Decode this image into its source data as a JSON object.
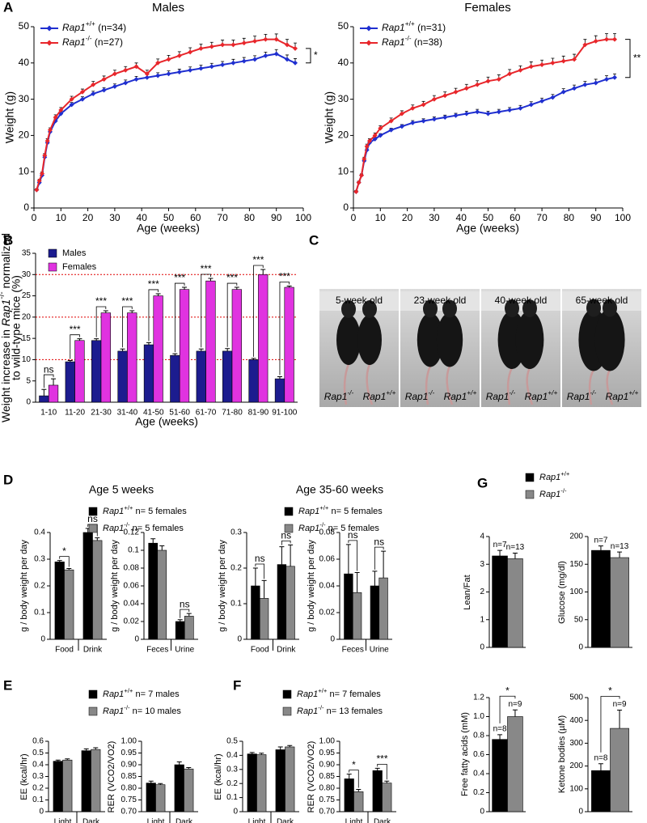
{
  "panel_labels": [
    "A",
    "B",
    "C",
    "D",
    "E",
    "F",
    "G"
  ],
  "photo_panel": {
    "photos": [
      {
        "caption": "5-week old",
        "left_label": "Rap1-/-",
        "right_label": "Rap1+/+"
      },
      {
        "caption": "23-week old",
        "left_label": "Rap1-/-",
        "right_label": "Rap1+/+"
      },
      {
        "caption": "40-week old",
        "left_label": "Rap1-/-",
        "right_label": "Rap1+/+"
      },
      {
        "caption": "65-week old",
        "left_label": "Rap1-/-",
        "right_label": "Rap1+/+"
      }
    ]
  },
  "chart_data": [
    {
      "type": "line",
      "title": "Males",
      "xlabel": "Age (weeks)",
      "ylabel": "Weight (g)",
      "x": [
        1,
        2,
        3,
        4,
        5,
        6,
        8,
        10,
        14,
        18,
        22,
        26,
        30,
        34,
        38,
        42,
        46,
        50,
        54,
        58,
        62,
        66,
        70,
        74,
        78,
        82,
        86,
        90,
        94,
        97
      ],
      "series": [
        {
          "name": "Rap1+/+ (n=34)",
          "color": "#1f2fd0",
          "values": [
            5,
            7,
            9,
            14,
            18,
            21,
            24,
            26,
            28.5,
            30,
            31.5,
            32.5,
            33.5,
            34.5,
            35.5,
            36,
            36.5,
            37,
            37.5,
            38,
            38.5,
            39,
            39.5,
            40,
            40.5,
            41,
            42,
            42.5,
            41,
            40
          ],
          "errors": [
            0.3,
            0.3,
            0.4,
            0.5,
            0.5,
            0.5,
            0.6,
            0.6,
            0.6,
            0.7,
            0.7,
            0.7,
            0.7,
            0.8,
            0.8,
            0.8,
            0.8,
            0.8,
            0.8,
            0.9,
            0.9,
            0.9,
            0.9,
            1,
            1,
            1,
            1,
            1.2,
            1.2,
            1.2
          ]
        },
        {
          "name": "Rap1-/- (n=27)",
          "color": "#e8262b",
          "values": [
            5,
            7.5,
            9.5,
            14.5,
            18.5,
            21.5,
            25,
            27,
            30,
            32,
            34,
            35.5,
            37,
            38,
            39,
            37,
            40,
            41,
            42,
            43,
            44,
            44.5,
            45,
            45,
            45.5,
            46,
            46.5,
            46.5,
            45,
            44
          ],
          "errors": [
            0.3,
            0.4,
            0.4,
            0.5,
            0.6,
            0.6,
            0.7,
            0.7,
            0.8,
            0.8,
            0.9,
            0.9,
            1,
            1,
            1,
            1,
            1.1,
            1.1,
            1.1,
            1.2,
            1.2,
            1.2,
            1.3,
            1.3,
            1.3,
            1.4,
            1.4,
            1.5,
            1.5,
            1.5
          ]
        }
      ],
      "annotation": "*",
      "xlim": [
        0,
        100
      ],
      "xticks": [
        0,
        10,
        20,
        30,
        40,
        50,
        60,
        70,
        80,
        90,
        100
      ],
      "ylim": [
        0,
        50
      ],
      "yticks": [
        0,
        10,
        20,
        30,
        40,
        50
      ]
    },
    {
      "type": "line",
      "title": "Females",
      "xlabel": "Age (weeks)",
      "ylabel": "Weight (g)",
      "x": [
        1,
        2,
        3,
        4,
        5,
        6,
        8,
        10,
        14,
        18,
        22,
        26,
        30,
        34,
        38,
        42,
        46,
        50,
        54,
        58,
        62,
        66,
        70,
        74,
        78,
        82,
        86,
        90,
        94,
        97
      ],
      "series": [
        {
          "name": "Rap1+/+ (n=31)",
          "color": "#1f2fd0",
          "values": [
            4.5,
            7,
            9,
            13,
            16,
            18,
            19,
            20,
            21.5,
            22.5,
            23.5,
            24,
            24.5,
            25,
            25.5,
            26,
            26.5,
            26,
            26.5,
            27,
            27.5,
            28.5,
            29.5,
            30.5,
            32,
            33,
            34,
            34.5,
            35.5,
            36
          ],
          "errors": [
            0.3,
            0.3,
            0.4,
            0.4,
            0.5,
            0.5,
            0.5,
            0.5,
            0.5,
            0.5,
            0.6,
            0.6,
            0.6,
            0.6,
            0.6,
            0.7,
            0.7,
            0.7,
            0.7,
            0.7,
            0.8,
            0.8,
            0.8,
            0.8,
            0.9,
            0.9,
            0.9,
            1,
            1,
            1
          ]
        },
        {
          "name": "Rap1-/- (n=38)",
          "color": "#e8262b",
          "values": [
            4.5,
            7,
            9,
            13.5,
            17,
            18.5,
            20,
            22,
            24,
            26,
            27.5,
            28.5,
            30,
            31,
            32,
            33,
            34,
            35,
            35.5,
            37,
            38,
            39,
            39.5,
            40,
            40.5,
            41,
            45,
            46,
            46.5,
            46.5
          ],
          "errors": [
            0.3,
            0.4,
            0.4,
            0.5,
            0.6,
            0.6,
            0.7,
            0.7,
            0.8,
            0.8,
            0.9,
            0.9,
            1,
            1,
            1,
            1.1,
            1.1,
            1.1,
            1.2,
            1.2,
            1.2,
            1.3,
            1.3,
            1.3,
            1.4,
            1.4,
            1.5,
            1.5,
            1.6,
            1.6
          ]
        }
      ],
      "annotation": "**",
      "xlim": [
        0,
        100
      ],
      "xticks": [
        0,
        10,
        20,
        30,
        40,
        50,
        60,
        70,
        80,
        90,
        100
      ],
      "ylim": [
        0,
        50
      ],
      "yticks": [
        0,
        10,
        20,
        30,
        40,
        50
      ]
    },
    {
      "type": "bar",
      "xlabel": "Age (weeks)",
      "ylabel": [
        "Weight increase in Rap1-/- normalized",
        "to wild-type mice (%)"
      ],
      "categories": [
        "1-10",
        "11-20",
        "21-30",
        "31-40",
        "41-50",
        "51-60",
        "61-70",
        "71-80",
        "81-90",
        "91-100"
      ],
      "series": [
        {
          "name": "Males",
          "color": "#1c1c8f",
          "values": [
            1.5,
            9.5,
            14.5,
            12,
            13.5,
            11,
            12,
            12,
            10,
            5.5
          ],
          "errors": [
            1.5,
            0.3,
            0.4,
            0.5,
            0.5,
            0.4,
            0.5,
            0.6,
            0.3,
            0.5
          ]
        },
        {
          "name": "Females",
          "color": "#e033e0",
          "values": [
            4,
            14.5,
            21,
            21,
            25,
            26.5,
            28.5,
            26.5,
            30,
            27
          ],
          "errors": [
            1.5,
            0.4,
            0.5,
            0.5,
            0.5,
            0.5,
            0.6,
            0.5,
            1.2,
            0.3
          ]
        }
      ],
      "significance": [
        "ns",
        "***",
        "***",
        "***",
        "***",
        "***",
        "***",
        "***",
        "***",
        "***"
      ],
      "reference_lines": [
        10,
        20,
        30
      ],
      "reference_color": "#e00000",
      "ylim": [
        0,
        35
      ],
      "yticks": [
        0,
        5,
        10,
        15,
        20,
        25,
        30,
        35
      ]
    },
    {
      "type": "bar",
      "title": "Age 5 weeks",
      "ylabel": "g / body weight per day",
      "categories": [
        "Food",
        "Drink"
      ],
      "series": [
        {
          "name": "Rap1+/+ n= 5 females",
          "color": "#000000",
          "values": [
            0.29,
            0.4
          ],
          "errors": [
            0.005,
            0.015
          ]
        },
        {
          "name": "Rap1-/- n= 5 females",
          "color": "#888888",
          "values": [
            0.26,
            0.37
          ],
          "errors": [
            0.005,
            0.01
          ]
        }
      ],
      "significance": [
        "*",
        "ns"
      ],
      "ylim": [
        0,
        0.4
      ],
      "yticks": [
        0,
        0.1,
        0.2,
        0.3,
        0.4
      ]
    },
    {
      "type": "bar",
      "ylabel": "g / body weight per day",
      "categories": [
        "Feces",
        "Urine"
      ],
      "series": [
        {
          "color": "#000000",
          "values": [
            0.108,
            0.02
          ],
          "errors": [
            0.005,
            0.002
          ]
        },
        {
          "color": "#888888",
          "values": [
            0.1,
            0.026
          ],
          "errors": [
            0.005,
            0.003
          ]
        }
      ],
      "significance": [
        null,
        "ns"
      ],
      "ylim": [
        0,
        0.12
      ],
      "yticks": [
        0,
        0.02,
        0.04,
        0.06,
        0.08,
        0.1,
        0.12
      ]
    },
    {
      "type": "bar",
      "title": "Age 35-60 weeks",
      "ylabel": "g / body weight per day",
      "categories": [
        "Food",
        "Drink"
      ],
      "series": [
        {
          "name": "Rap1+/+ n= 5 females",
          "color": "#000000",
          "values": [
            0.15,
            0.21
          ],
          "errors": [
            0.05,
            0.05
          ]
        },
        {
          "name": "Rap1-/- n= 5 females",
          "color": "#888888",
          "values": [
            0.115,
            0.205
          ],
          "errors": [
            0.05,
            0.06
          ]
        }
      ],
      "significance": [
        "ns",
        "ns"
      ],
      "ylim": [
        0,
        0.3
      ],
      "yticks": [
        0,
        0.1,
        0.2,
        0.3
      ]
    },
    {
      "type": "bar",
      "ylabel": "g / body weight per day",
      "categories": [
        "Feces",
        "Urine"
      ],
      "series": [
        {
          "color": "#000000",
          "values": [
            0.049,
            0.04
          ],
          "errors": [
            0.022,
            0.011
          ]
        },
        {
          "color": "#888888",
          "values": [
            0.035,
            0.046
          ],
          "errors": [
            0.015,
            0.02
          ]
        }
      ],
      "significance": [
        "ns",
        "ns"
      ],
      "ylim": [
        0,
        0.08
      ],
      "yticks": [
        0,
        0.02,
        0.04,
        0.06,
        0.08
      ]
    },
    {
      "type": "bar",
      "ylabel": "EE (kcal/hr)",
      "categories": [
        "Light",
        "Dark"
      ],
      "series": [
        {
          "name": "Rap1+/+ n= 7 males",
          "color": "#000000",
          "values": [
            0.43,
            0.52
          ],
          "errors": [
            0.01,
            0.015
          ]
        },
        {
          "name": "Rap1-/- n= 10 males",
          "color": "#888888",
          "values": [
            0.44,
            0.53
          ],
          "errors": [
            0.01,
            0.015
          ]
        }
      ],
      "ylim": [
        0,
        0.6
      ],
      "yticks": [
        0,
        0.1,
        0.2,
        0.3,
        0.4,
        0.5,
        0.6
      ]
    },
    {
      "type": "bar",
      "ylabel": "RER (VCO2/VO2)",
      "categories": [
        "Light",
        "Dark"
      ],
      "series": [
        {
          "color": "#000000",
          "values": [
            0.822,
            0.9
          ],
          "errors": [
            0.008,
            0.012
          ]
        },
        {
          "color": "#888888",
          "values": [
            0.815,
            0.882
          ],
          "errors": [
            0.005,
            0.006
          ]
        }
      ],
      "ylim": [
        0.7,
        1
      ],
      "yticks": [
        {
          "value": 0.7,
          "label": "0.70"
        },
        0.75,
        {
          "value": 0.8,
          "label": "0.80"
        },
        0.85,
        {
          "value": 0.9,
          "label": "0.90"
        },
        0.95,
        {
          "value": 1,
          "label": "1.00"
        }
      ]
    },
    {
      "type": "bar",
      "ylabel": "EE (kcal/hr)",
      "categories": [
        "Light",
        "Dark"
      ],
      "series": [
        {
          "name": "Rap1+/+ n= 7 females",
          "color": "#000000",
          "values": [
            0.41,
            0.44
          ],
          "errors": [
            0.01,
            0.02
          ]
        },
        {
          "name": "Rap1-/- n= 13 females",
          "color": "#888888",
          "values": [
            0.405,
            0.46
          ],
          "errors": [
            0.01,
            0.01
          ]
        }
      ],
      "ylim": [
        0,
        0.5
      ],
      "yticks": [
        0,
        0.1,
        0.2,
        0.3,
        0.4,
        0.5
      ]
    },
    {
      "type": "bar",
      "ylabel": "RER (VCO2/VO2)",
      "categories": [
        "Light",
        "Dark"
      ],
      "series": [
        {
          "color": "#000000",
          "values": [
            0.84,
            0.875
          ],
          "errors": [
            0.02,
            0.01
          ]
        },
        {
          "color": "#888888",
          "values": [
            0.785,
            0.822
          ],
          "errors": [
            0.01,
            0.008
          ]
        }
      ],
      "significance": [
        "*",
        "***"
      ],
      "ylim": [
        0.7,
        1
      ],
      "yticks": [
        {
          "value": 0.7,
          "label": "0.70"
        },
        0.75,
        {
          "value": 0.8,
          "label": "0.80"
        },
        0.85,
        {
          "value": 0.9,
          "label": "0.90"
        },
        0.95,
        {
          "value": 1,
          "label": "1.00"
        }
      ]
    },
    {
      "type": "bar",
      "ylabel": "Lean/Fat",
      "categories": [
        null
      ],
      "series": [
        {
          "name": "Rap1+/+",
          "color": "#000000",
          "values": [
            3.3
          ],
          "errors": [
            0.2
          ],
          "sample_labels": [
            "n=7"
          ]
        },
        {
          "name": "Rap1-/-",
          "color": "#888888",
          "values": [
            3.2
          ],
          "errors": [
            0.2
          ],
          "sample_labels": [
            "n=13"
          ]
        }
      ],
      "ylim": [
        0,
        4
      ],
      "yticks": [
        0,
        1,
        2,
        3,
        4
      ]
    },
    {
      "type": "bar",
      "ylabel": "Glucose (mg/dl)",
      "categories": [
        null
      ],
      "series": [
        {
          "color": "#000000",
          "values": [
            175
          ],
          "errors": [
            8
          ],
          "sample_labels": [
            "n=7"
          ]
        },
        {
          "color": "#888888",
          "values": [
            162
          ],
          "errors": [
            10
          ],
          "sample_labels": [
            "n=13"
          ]
        }
      ],
      "ylim": [
        0,
        200
      ],
      "yticks": [
        0,
        50,
        100,
        150,
        200
      ]
    },
    {
      "type": "bar",
      "ylabel": "Free fatty acids (mM)",
      "categories": [
        null
      ],
      "series": [
        {
          "color": "#000000",
          "values": [
            0.76
          ],
          "errors": [
            0.05
          ],
          "sample_labels": [
            "n=8"
          ]
        },
        {
          "color": "#888888",
          "values": [
            1.0
          ],
          "errors": [
            0.07
          ],
          "sample_labels": [
            "n=9"
          ]
        }
      ],
      "significance": [
        "*"
      ],
      "ylim": [
        0,
        1.2
      ],
      "yticks": [
        0,
        0.2,
        0.4,
        0.6,
        0.8,
        {
          "value": 1,
          "label": "1.0"
        },
        1.2
      ]
    },
    {
      "type": "bar",
      "ylabel": "Ketone bodies (µM)",
      "categories": [
        null
      ],
      "series": [
        {
          "color": "#000000",
          "values": [
            180
          ],
          "errors": [
            30
          ],
          "sample_labels": [
            "n=8"
          ]
        },
        {
          "color": "#888888",
          "values": [
            365
          ],
          "errors": [
            80
          ],
          "sample_labels": [
            "n=9"
          ]
        }
      ],
      "significance": [
        "*"
      ],
      "ylim": [
        0,
        500
      ],
      "yticks": [
        0,
        100,
        200,
        300,
        400,
        500
      ]
    }
  ]
}
